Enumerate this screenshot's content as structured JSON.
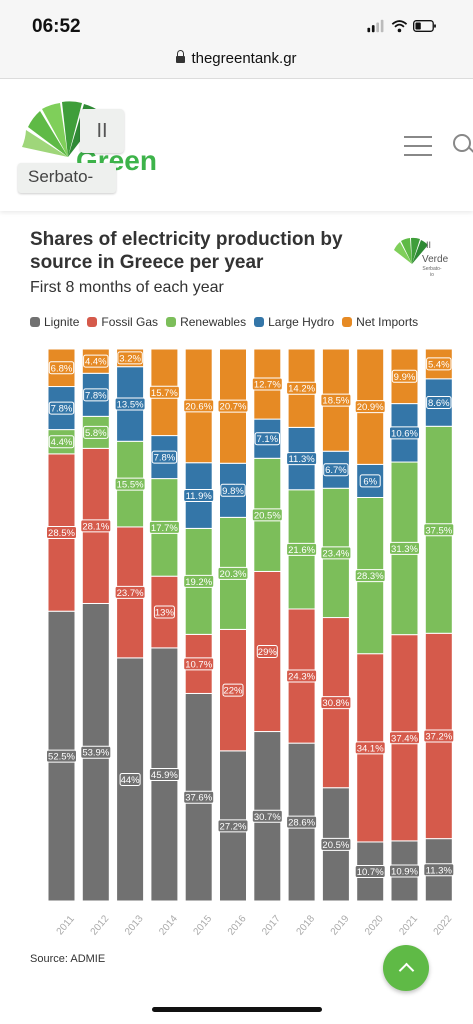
{
  "status_bar": {
    "time": "06:52"
  },
  "browser": {
    "url": "thegreentank.gr"
  },
  "site": {
    "logo_text": "Green",
    "logo_tag": "Serbato-",
    "logo_pause": "II"
  },
  "badge": {
    "line1": "II",
    "line2": "Verde",
    "line3": "Serbato-io"
  },
  "colors": {
    "Lignite": "#717171",
    "Fossil Gas": "#d55a4b",
    "Renewables": "#7cbe5a",
    "Large Hydro": "#3476a8",
    "Net Imports": "#e68a24"
  },
  "chart_data": {
    "type": "bar",
    "stacked": true,
    "orientation": "vertical",
    "title": "Shares of electricity production by source in Greece per year",
    "subtitle": "First 8 months of each year",
    "source": "Source: ADMIE",
    "categories": [
      "2011",
      "2012",
      "2013",
      "2014",
      "2015",
      "2016",
      "2017",
      "2018",
      "2019",
      "2020",
      "2021",
      "2022"
    ],
    "legend_position": "top",
    "series": [
      {
        "name": "Lignite",
        "values": [
          52.5,
          53.9,
          44,
          45.9,
          37.6,
          27.2,
          30.7,
          28.6,
          20.5,
          10.7,
          10.9,
          11.3
        ]
      },
      {
        "name": "Fossil Gas",
        "values": [
          28.5,
          28.1,
          23.7,
          13,
          10.7,
          22,
          29,
          24.3,
          30.8,
          34.1,
          37.4,
          37.2
        ]
      },
      {
        "name": "Renewables",
        "values": [
          4.4,
          5.8,
          15.5,
          17.7,
          19.2,
          20.3,
          20.5,
          21.6,
          23.4,
          28.3,
          31.3,
          37.5
        ]
      },
      {
        "name": "Large Hydro",
        "values": [
          7.8,
          7.8,
          13.5,
          7.8,
          11.9,
          9.8,
          7.1,
          11.3,
          6.7,
          6,
          10.6,
          8.6
        ]
      },
      {
        "name": "Net Imports",
        "values": [
          6.8,
          4.4,
          3.2,
          15.7,
          20.6,
          20.7,
          12.7,
          14.2,
          18.5,
          20.9,
          9.9,
          5.4
        ]
      }
    ],
    "labels": [
      [
        "52.5%",
        "53.9%",
        "44%",
        "45.9%",
        "37.6%",
        "27.2%",
        "30.7%",
        "28.6%",
        "20.5%",
        "10.7%",
        "10.9%",
        "11.3%"
      ],
      [
        "28.5%",
        "28.1%",
        "23.7%",
        "13%",
        "10.7%",
        "22%",
        "29%",
        "24.3%",
        "30.8%",
        "34.1%",
        "37.4%",
        "37.2%"
      ],
      [
        "4.4%",
        "5.8%",
        "15.5%",
        "17.7%",
        "19.2%",
        "20.3%",
        "20.5%",
        "21.6%",
        "23.4%",
        "28.3%",
        "31.3%",
        "37.5%"
      ],
      [
        "7.8%",
        "7.8%",
        "13.5%",
        "7.8%",
        "11.9%",
        "9.8%",
        "7.1%",
        "11.3%",
        "6.7%",
        "6%",
        "10.6%",
        "8.6%"
      ],
      [
        "6.8%",
        "4.4%",
        "3.2%",
        "15.7%",
        "20.6%",
        "20.7%",
        "12.7%",
        "14.2%",
        "18.5%",
        "20.9%",
        "9.9%",
        "5.4%"
      ]
    ]
  }
}
